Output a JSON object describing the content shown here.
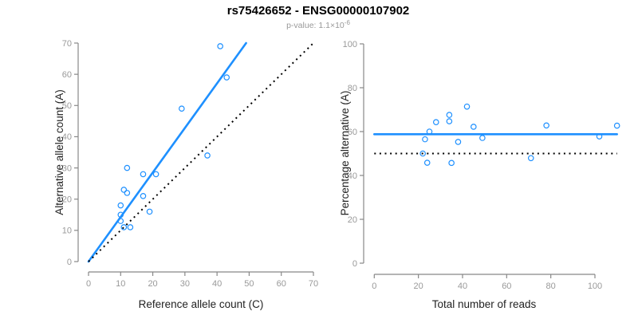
{
  "header": {
    "title": "rs75426652 - ENSG00000107902",
    "subtitle_prefix": "p-value: 1.1×10",
    "subtitle_exponent": "-6"
  },
  "colors": {
    "accent_blue": "#1E90FF",
    "axis_gray": "#888888",
    "tick_label_gray": "#999999",
    "axis_title_color": "#222222",
    "dotted_line_black": "#000000",
    "subtitle_gray": "#999999"
  },
  "chart_data": [
    {
      "type": "scatter",
      "name": "allele-counts-plot",
      "xlabel": "Reference allele count (C)",
      "ylabel": "Alternative allele count (A)",
      "xlim": [
        0,
        70
      ],
      "ylim": [
        0,
        70
      ],
      "xticks": [
        0,
        10,
        20,
        30,
        40,
        50,
        60,
        70
      ],
      "yticks": [
        0,
        10,
        20,
        30,
        40,
        50,
        60,
        70
      ],
      "grid": false,
      "point_color": "#1E90FF",
      "points": [
        [
          41,
          69
        ],
        [
          43,
          59
        ],
        [
          29,
          49
        ],
        [
          37,
          34
        ],
        [
          12,
          30
        ],
        [
          17,
          28
        ],
        [
          21,
          28
        ],
        [
          11,
          23
        ],
        [
          12,
          22
        ],
        [
          17,
          21
        ],
        [
          10,
          18
        ],
        [
          19,
          16
        ],
        [
          10,
          15
        ],
        [
          10,
          13
        ],
        [
          11,
          11
        ],
        [
          13,
          11
        ]
      ],
      "lines": [
        {
          "name": "fit-line",
          "kind": "slope-through-origin",
          "slope": 1.427,
          "x_start": 0,
          "x_end": 49.05,
          "style": "solid",
          "color": "#1E90FF"
        },
        {
          "name": "identity-line",
          "kind": "slope-through-origin",
          "slope": 1,
          "x_start": 0,
          "x_end": 70,
          "style": "dotted",
          "color": "#000000"
        }
      ]
    },
    {
      "type": "scatter",
      "name": "percentage-alternative-plot",
      "xlabel": "Total number of reads",
      "ylabel": "Percentage alternative (A)",
      "xlim": [
        0,
        100
      ],
      "ylim": [
        0,
        100
      ],
      "xticks": [
        0,
        20,
        40,
        60,
        80,
        100
      ],
      "yticks": [
        0,
        20,
        40,
        60,
        80,
        100
      ],
      "grid": false,
      "point_color": "#1E90FF",
      "points": [
        [
          110,
          62.7
        ],
        [
          102,
          57.8
        ],
        [
          78,
          62.8
        ],
        [
          71,
          47.9
        ],
        [
          42,
          71.4
        ],
        [
          45,
          62.2
        ],
        [
          49,
          57.1
        ],
        [
          34,
          67.6
        ],
        [
          34,
          64.7
        ],
        [
          38,
          55.3
        ],
        [
          28,
          64.3
        ],
        [
          35,
          45.7
        ],
        [
          25,
          60.0
        ],
        [
          23,
          56.5
        ],
        [
          22,
          50.0
        ],
        [
          24,
          45.8
        ]
      ],
      "lines": [
        {
          "name": "fit-line",
          "kind": "horizontal",
          "y": 58.8,
          "x_start": 0,
          "x_end": 110,
          "style": "solid",
          "color": "#1E90FF"
        },
        {
          "name": "null-line",
          "kind": "horizontal",
          "y": 50,
          "x_start": 0,
          "x_end": 110,
          "style": "dotted",
          "color": "#000000"
        }
      ]
    }
  ]
}
